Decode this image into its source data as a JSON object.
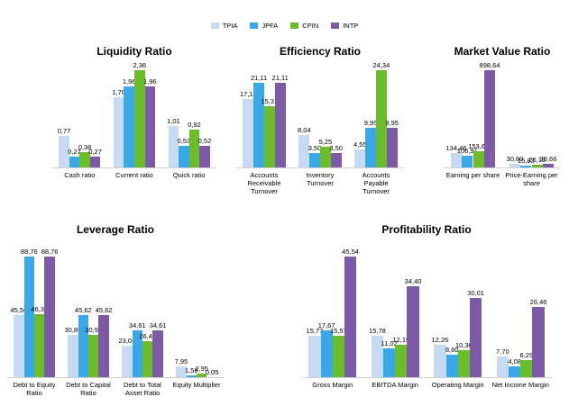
{
  "legend": {
    "series": [
      {
        "name": "TPIA",
        "color": "#c6dbf1"
      },
      {
        "name": "JPFA",
        "color": "#3aa8e6"
      },
      {
        "name": "CPIN",
        "color": "#6cbd2c"
      },
      {
        "name": "INTP",
        "color": "#7c5aa6"
      }
    ]
  },
  "chart_data": [
    {
      "type": "bar",
      "title": "Liquidity Ratio",
      "categories": [
        "Cash ratio",
        "Current ratio",
        "Quick ratio"
      ],
      "series": [
        {
          "values": [
            0.77,
            1.7,
            1.01
          ],
          "value_labels": [
            "0,77",
            "1,70",
            "1,01"
          ]
        },
        {
          "values": [
            0.27,
            1.96,
            0.53
          ],
          "value_labels": [
            "0,27",
            "1,96",
            "0,53"
          ]
        },
        {
          "values": [
            0.38,
            2.36,
            0.92
          ],
          "value_labels": [
            "0,38",
            "2,36",
            "0,92"
          ]
        },
        {
          "values": [
            0.27,
            1.96,
            0.52
          ],
          "value_labels": [
            "0,27",
            "1,96",
            "0,52"
          ]
        }
      ]
    },
    {
      "type": "bar",
      "title": "Efficiency Ratio",
      "categories": [
        "Accounts Receivable Turnover",
        "Inventory Turnover",
        "Accounts Payable Turnover"
      ],
      "series": [
        {
          "values": [
            17.14,
            8.04,
            4.55
          ],
          "value_labels": [
            "17,14",
            "8,04",
            "4,55"
          ]
        },
        {
          "values": [
            21.11,
            3.5,
            9.95
          ],
          "value_labels": [
            "21,11",
            "3,50",
            "9,95"
          ]
        },
        {
          "values": [
            15.31,
            5.25,
            24.34
          ],
          "value_labels": [
            "15,31",
            "5,25",
            "24,34"
          ]
        },
        {
          "values": [
            21.11,
            3.5,
            9.95
          ],
          "value_labels": [
            "21,11",
            "3,50",
            "9,95"
          ]
        }
      ]
    },
    {
      "type": "bar",
      "title": "Market Value Ratio",
      "categories": [
        "Earning per share",
        "Price-Earning per share"
      ],
      "series": [
        {
          "values": [
            134.46,
            30.6
          ],
          "value_labels": [
            "134,46",
            "30,60"
          ]
        },
        {
          "values": [
            106.91,
            15.83
          ],
          "value_labels": [
            "106,91",
            "15,83"
          ]
        },
        {
          "values": [
            153.69,
            26.1
          ],
          "value_labels": [
            "153,69",
            "26,10"
          ]
        },
        {
          "values": [
            898.64,
            30.66
          ],
          "value_labels": [
            "898,64",
            "30,66"
          ]
        }
      ]
    },
    {
      "type": "bar",
      "title": "Leverage Ratio",
      "categories": [
        "Debt to Equity Ratio",
        "Debt to Capital Ratio",
        "Debt to Total Asset Ratio",
        "Equity Multiplier"
      ],
      "series": [
        {
          "values": [
            45.56,
            30.89,
            23.03,
            7.95
          ],
          "value_labels": [
            "45,56",
            "30,89",
            "23,03",
            "7,95"
          ]
        },
        {
          "values": [
            88.76,
            45.62,
            34.61,
            1.58
          ],
          "value_labels": [
            "88,76",
            "45,62",
            "34,61",
            "1,58"
          ]
        },
        {
          "values": [
            46.34,
            30.9,
            26.44,
            2.95
          ],
          "value_labels": [
            "46,34",
            "30,90",
            "26,44",
            "2,95"
          ]
        },
        {
          "values": [
            88.76,
            45.62,
            34.61,
            0.05
          ],
          "value_labels": [
            "88,76",
            "45,62",
            "34,61",
            "0,05"
          ]
        }
      ]
    },
    {
      "type": "bar",
      "title": "Profitability Ratio",
      "categories": [
        "Gross Margin",
        "EBITDA Margin",
        "Operating Margin",
        "Net Income Margin"
      ],
      "series": [
        {
          "values": [
            15.77,
            15.78,
            12.26,
            7.7
          ],
          "value_labels": [
            "15,77",
            "15,78",
            "12,26",
            "7,70"
          ]
        },
        {
          "values": [
            17.67,
            11.02,
            8.6,
            4.08
          ],
          "value_labels": [
            "17,67",
            "11,02",
            "8,60",
            "4,08"
          ]
        },
        {
          "values": [
            15.57,
            12.19,
            10.3,
            6.29
          ],
          "value_labels": [
            "15,57",
            "12,19",
            "10,30",
            "6,29"
          ]
        },
        {
          "values": [
            45.54,
            34.4,
            30.01,
            26.46
          ],
          "value_labels": [
            "45,54",
            "34,40",
            "30,01",
            "26,46"
          ]
        }
      ]
    }
  ]
}
